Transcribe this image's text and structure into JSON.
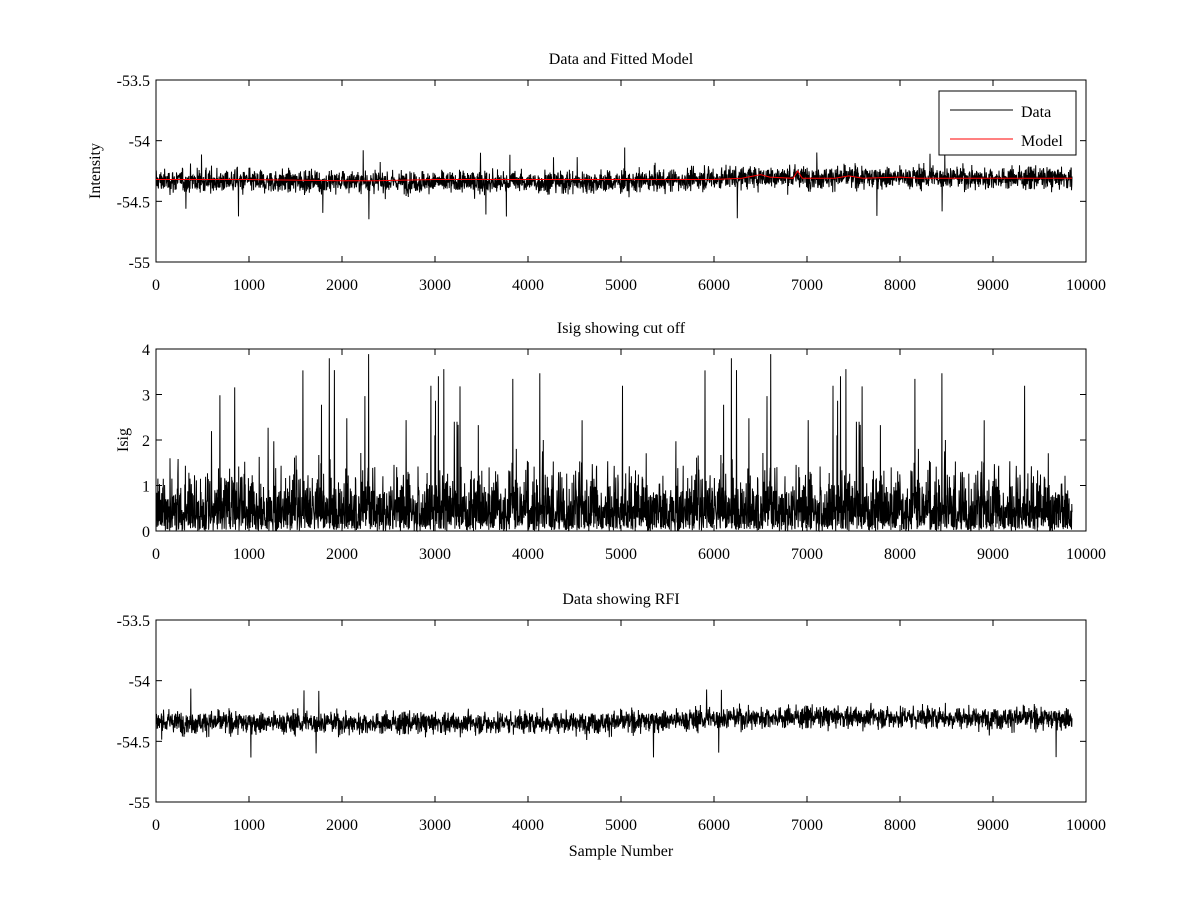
{
  "chart_data": [
    {
      "type": "line",
      "title": "Data and Fitted Model",
      "xlabel": "",
      "ylabel": "Intensity",
      "xlim": [
        0,
        10000
      ],
      "ylim": [
        -55,
        -53.5
      ],
      "xticks": [
        "0",
        "1000",
        "2000",
        "3000",
        "4000",
        "5000",
        "6000",
        "7000",
        "8000",
        "9000",
        "10000"
      ],
      "yticks": [
        "-53.5",
        "-54",
        "-54.5",
        "-55"
      ],
      "legend": "top-right",
      "series": [
        {
          "name": "Data",
          "color": "#000000",
          "kind": "noise",
          "x_range": [
            0,
            9850
          ],
          "center": [
            [
              0,
              -54.33
            ],
            [
              3000,
              -54.34
            ],
            [
              5000,
              -54.34
            ],
            [
              6500,
              -54.3
            ],
            [
              8000,
              -54.3
            ],
            [
              9850,
              -54.31
            ]
          ],
          "typical_spread": 0.13,
          "extreme_min": -54.65,
          "extreme_max": -54.05
        },
        {
          "name": "Model",
          "color": "#ff0000",
          "kind": "line",
          "points": [
            [
              0,
              -54.32
            ],
            [
              1000,
              -54.32
            ],
            [
              2000,
              -54.33
            ],
            [
              2400,
              -54.33
            ],
            [
              3000,
              -54.32
            ],
            [
              5000,
              -54.32
            ],
            [
              6000,
              -54.32
            ],
            [
              6300,
              -54.31
            ],
            [
              6500,
              -54.28
            ],
            [
              6600,
              -54.3
            ],
            [
              6850,
              -54.31
            ],
            [
              6900,
              -54.25
            ],
            [
              6950,
              -54.31
            ],
            [
              7300,
              -54.31
            ],
            [
              7450,
              -54.29
            ],
            [
              7600,
              -54.31
            ],
            [
              8000,
              -54.3
            ],
            [
              8200,
              -54.31
            ],
            [
              9000,
              -54.31
            ],
            [
              9850,
              -54.31
            ]
          ]
        }
      ]
    },
    {
      "type": "line",
      "title": "Isig showing cut off",
      "xlabel": "",
      "ylabel": "Isig",
      "xlim": [
        0,
        10000
      ],
      "ylim": [
        0,
        4
      ],
      "xticks": [
        "0",
        "1000",
        "2000",
        "3000",
        "4000",
        "5000",
        "6000",
        "7000",
        "8000",
        "9000",
        "10000"
      ],
      "yticks": [
        "4",
        "3",
        "2",
        "1",
        "0"
      ],
      "series": [
        {
          "color": "#000000",
          "kind": "abs-noise",
          "x_range": [
            0,
            9850
          ],
          "typical_max": 1.6,
          "extreme_max": 3.95
        }
      ]
    },
    {
      "type": "line",
      "title": "Data showing RFI",
      "xlabel": "Sample Number",
      "ylabel": "",
      "xlim": [
        0,
        10000
      ],
      "ylim": [
        -55,
        -53.5
      ],
      "xticks": [
        "0",
        "1000",
        "2000",
        "3000",
        "4000",
        "5000",
        "6000",
        "7000",
        "8000",
        "9000",
        "10000"
      ],
      "yticks": [
        "-53.5",
        "-54",
        "-54.5",
        "-55"
      ],
      "series": [
        {
          "color": "#000000",
          "kind": "noise",
          "x_range": [
            0,
            9850
          ],
          "center": [
            [
              0,
              -54.34
            ],
            [
              3000,
              -54.35
            ],
            [
              5000,
              -54.34
            ],
            [
              6500,
              -54.3
            ],
            [
              8000,
              -54.3
            ],
            [
              9850,
              -54.31
            ]
          ],
          "typical_spread": 0.13,
          "extreme_min": -54.66,
          "extreme_max": -54.0
        }
      ]
    }
  ]
}
